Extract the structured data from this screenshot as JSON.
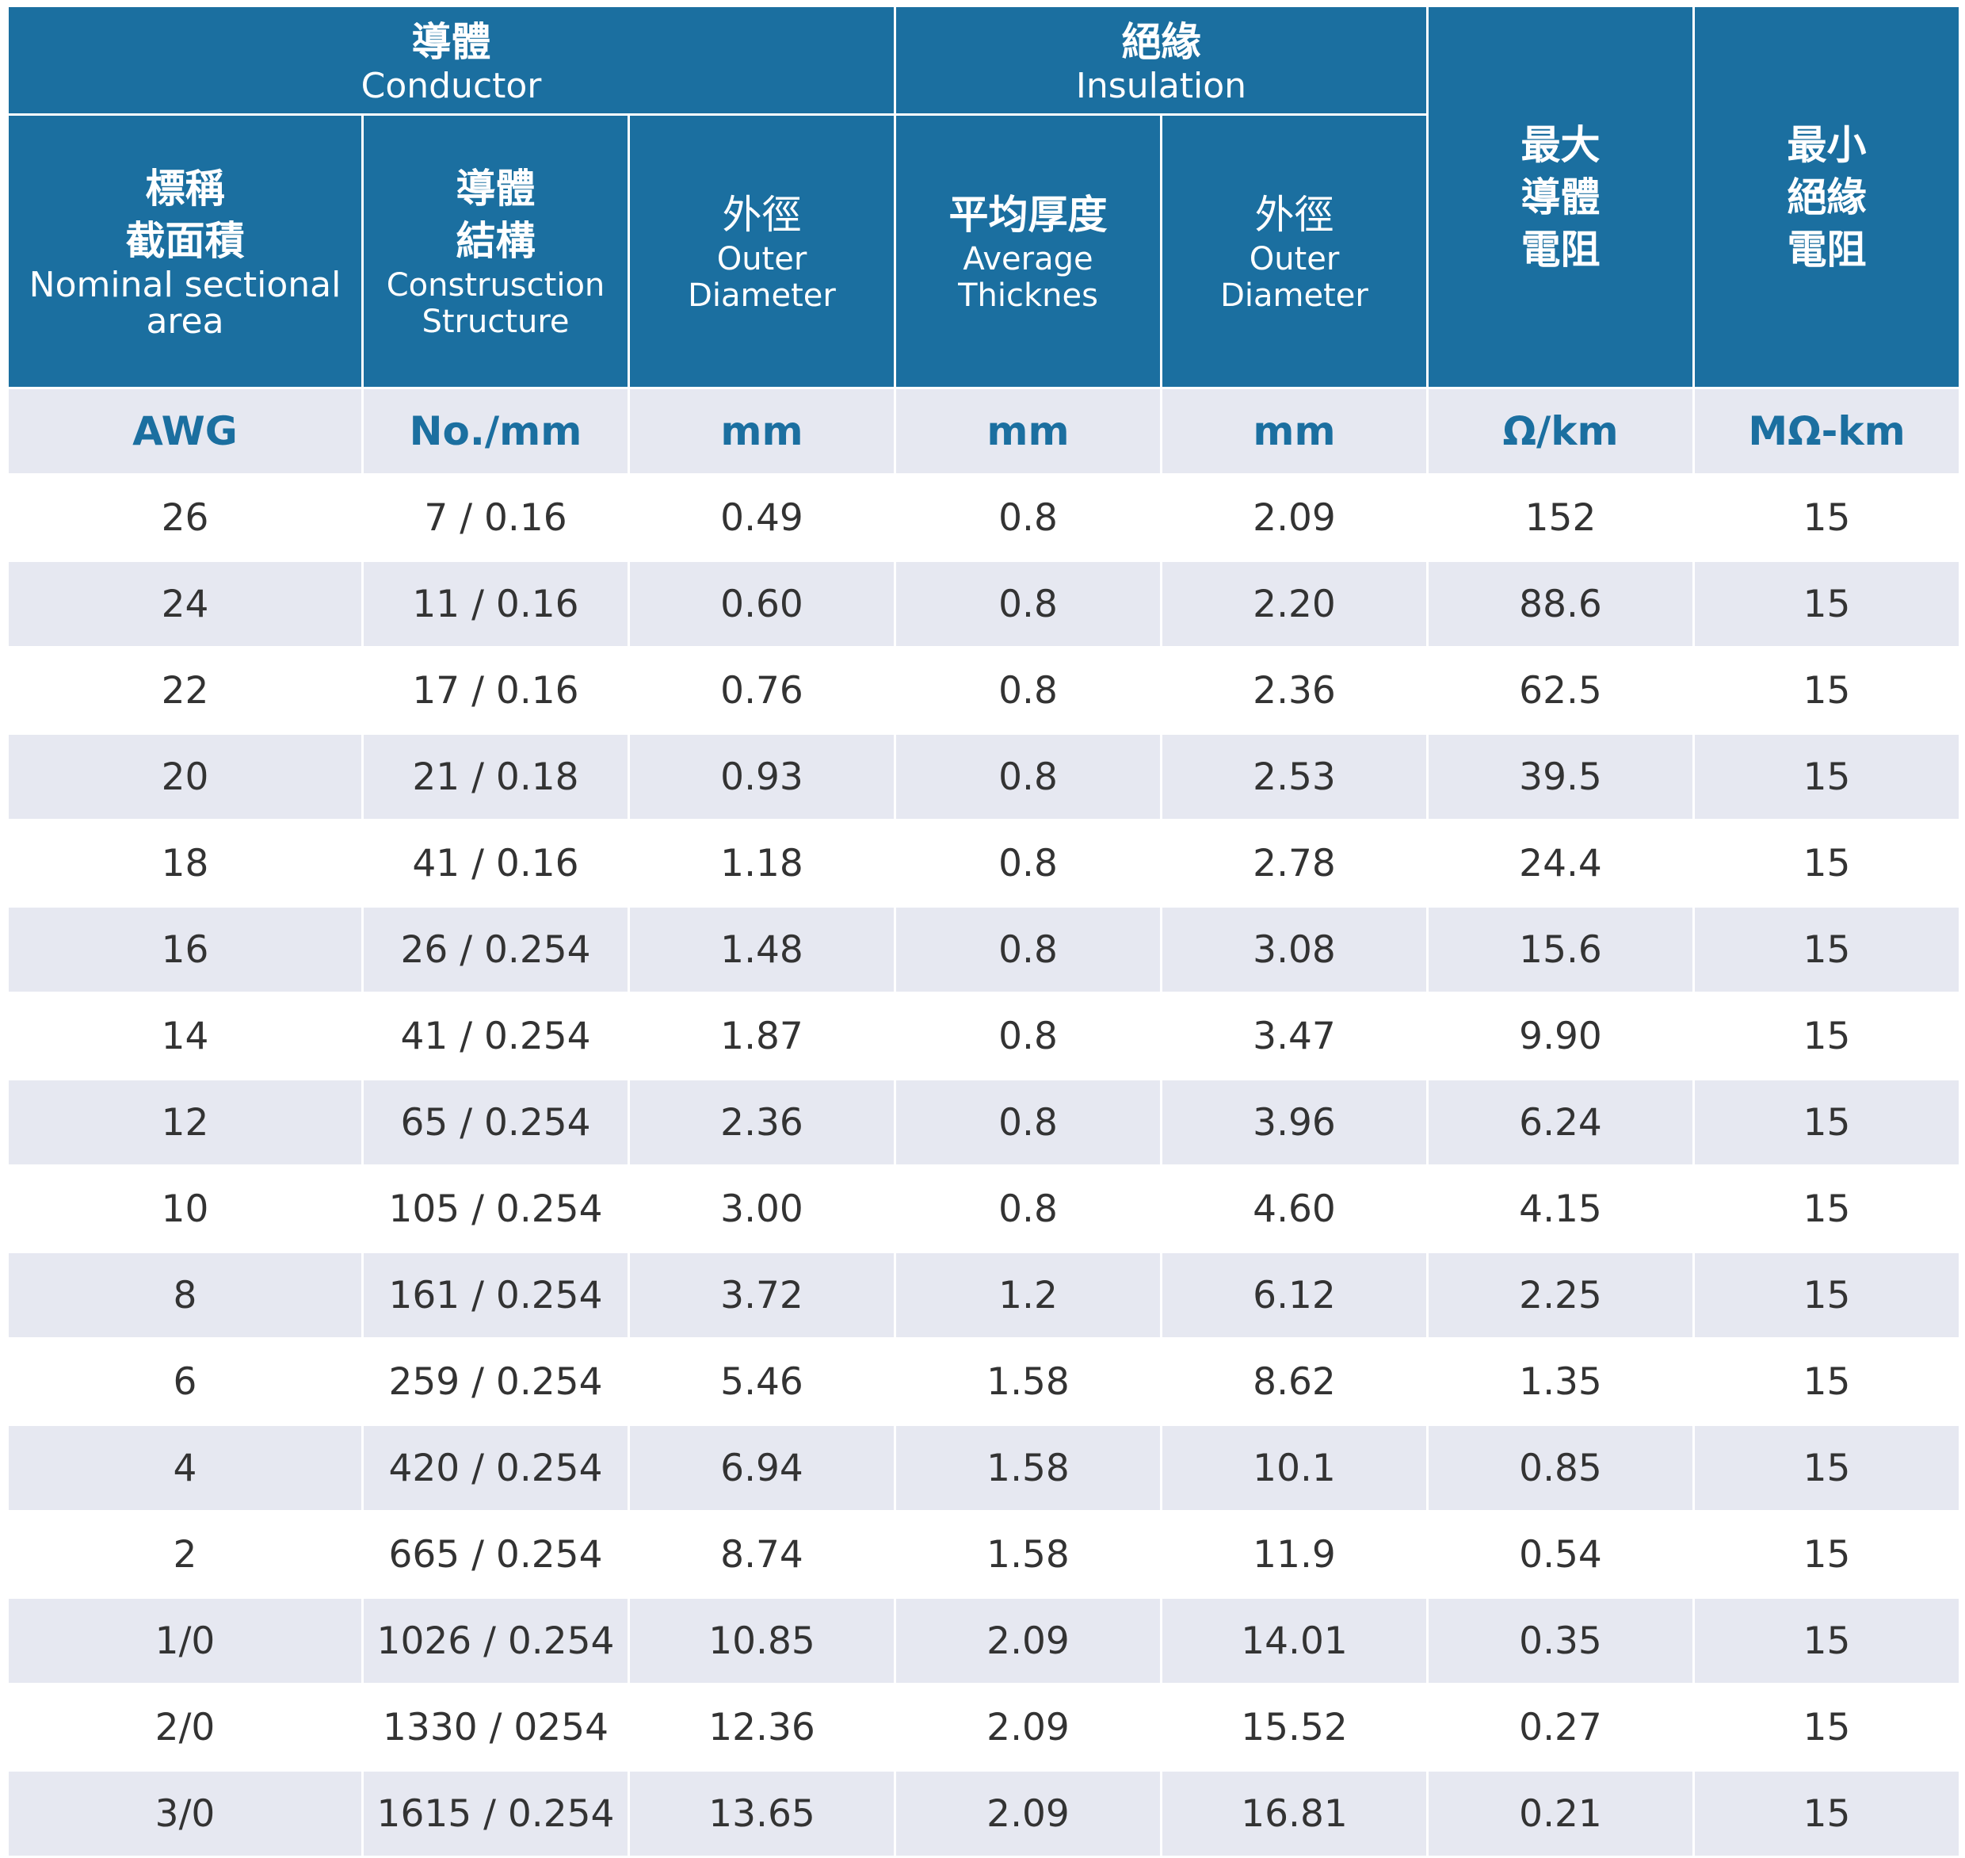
{
  "header": {
    "conductor": {
      "zh": "導體",
      "en": "Conductor"
    },
    "insulation": {
      "zh": "絕緣",
      "en": "Insulation"
    },
    "max_resistance": {
      "zh": [
        "最大",
        "導體",
        "電阻"
      ]
    },
    "min_insulation_resistance": {
      "zh": [
        "最小",
        "絕緣",
        "電阻"
      ]
    },
    "nominal_area": {
      "zh": [
        "標稱",
        "截面積"
      ],
      "en": [
        "Nominal sectional",
        "area"
      ]
    },
    "construction": {
      "zh": [
        "導體",
        "結構"
      ],
      "en": [
        "Construsction",
        "Structure"
      ]
    },
    "conductor_od": {
      "zh": "外徑",
      "en": [
        "Outer",
        "Diameter"
      ]
    },
    "avg_thickness": {
      "zh": "平均厚度",
      "en": [
        "Average",
        "Thicknes"
      ]
    },
    "insulation_od": {
      "zh": "外徑",
      "en": [
        "Outer",
        "Diameter"
      ]
    }
  },
  "units": [
    "AWG",
    "No./mm",
    "mm",
    "mm",
    "mm",
    "Ω/km",
    "MΩ-km"
  ],
  "rows": [
    [
      "26",
      "7 / 0.16",
      "0.49",
      "0.8",
      "2.09",
      "152",
      "15"
    ],
    [
      "24",
      "11 / 0.16",
      "0.60",
      "0.8",
      "2.20",
      "88.6",
      "15"
    ],
    [
      "22",
      "17 / 0.16",
      "0.76",
      "0.8",
      "2.36",
      "62.5",
      "15"
    ],
    [
      "20",
      "21 / 0.18",
      "0.93",
      "0.8",
      "2.53",
      "39.5",
      "15"
    ],
    [
      "18",
      "41 / 0.16",
      "1.18",
      "0.8",
      "2.78",
      "24.4",
      "15"
    ],
    [
      "16",
      "26 / 0.254",
      "1.48",
      "0.8",
      "3.08",
      "15.6",
      "15"
    ],
    [
      "14",
      "41 / 0.254",
      "1.87",
      "0.8",
      "3.47",
      "9.90",
      "15"
    ],
    [
      "12",
      "65 / 0.254",
      "2.36",
      "0.8",
      "3.96",
      "6.24",
      "15"
    ],
    [
      "10",
      "105 / 0.254",
      "3.00",
      "0.8",
      "4.60",
      "4.15",
      "15"
    ],
    [
      "8",
      "161 / 0.254",
      "3.72",
      "1.2",
      "6.12",
      "2.25",
      "15"
    ],
    [
      "6",
      "259 / 0.254",
      "5.46",
      "1.58",
      "8.62",
      "1.35",
      "15"
    ],
    [
      "4",
      "420 / 0.254",
      "6.94",
      "1.58",
      "10.1",
      "0.85",
      "15"
    ],
    [
      "2",
      "665 / 0.254",
      "8.74",
      "1.58",
      "11.9",
      "0.54",
      "15"
    ],
    [
      "1/0",
      "1026 / 0.254",
      "10.85",
      "2.09",
      "14.01",
      "0.35",
      "15"
    ],
    [
      "2/0",
      "1330 / 0254",
      "12.36",
      "2.09",
      "15.52",
      "0.27",
      "15"
    ],
    [
      "3/0",
      "1615 / 0.254",
      "13.65",
      "2.09",
      "16.81",
      "0.21",
      "15"
    ]
  ]
}
